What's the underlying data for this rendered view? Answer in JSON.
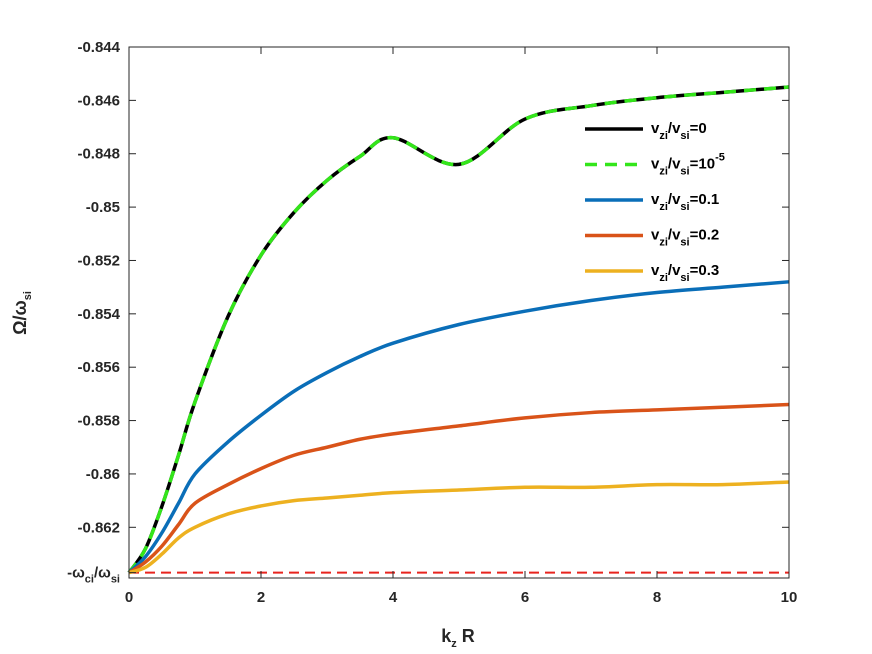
{
  "chart_data": {
    "type": "line",
    "x_axis": {
      "label_main": "k",
      "label_sub": "z",
      "label_tail": " R",
      "range": [
        0,
        10
      ],
      "ticks": [
        0,
        2,
        4,
        6,
        8,
        10
      ],
      "tick_labels": [
        "0",
        "2",
        "4",
        "6",
        "8",
        "10"
      ]
    },
    "y_axis": {
      "label_main": "Ω/ω",
      "label_sub": "si",
      "range": [
        -0.8639,
        -0.844
      ],
      "ticks": [
        -0.844,
        -0.846,
        -0.848,
        -0.85,
        -0.852,
        -0.854,
        -0.856,
        -0.858,
        -0.86,
        -0.862
      ],
      "tick_labels": [
        "-0.844",
        "-0.846",
        "-0.848",
        "-0.85",
        "-0.852",
        "-0.854",
        "-0.856",
        "-0.858",
        "-0.86",
        "-0.862"
      ],
      "special_tick": {
        "value": -0.8637,
        "parts": [
          "-ω",
          "ci",
          "/ω",
          "si"
        ]
      }
    },
    "reference_line": {
      "y": -0.8637,
      "color": "#e8251f",
      "style": "dashed"
    },
    "x": [
      0,
      0.25,
      0.5,
      0.75,
      1,
      1.5,
      2,
      2.5,
      3,
      3.5,
      4,
      5,
      6,
      7,
      8,
      9,
      10
    ],
    "series": [
      {
        "legend": [
          "v",
          "zi",
          "/v",
          "si",
          "=0",
          ""
        ],
        "color": "#000000",
        "style": "solid",
        "values": [
          -0.8637,
          -0.8628,
          -0.8612,
          -0.8593,
          -0.8573,
          -0.8541,
          -0.8518,
          -0.8502,
          -0.849,
          -0.8481,
          -0.8474,
          -0.8484,
          -0.8467,
          -0.8462,
          -0.8459,
          -0.8457,
          -0.8455
        ]
      },
      {
        "legend": [
          "v",
          "zi",
          "/v",
          "si",
          "=10",
          "-5"
        ],
        "color": "#33e61a",
        "style": "dashed",
        "values": [
          -0.8637,
          -0.8628,
          -0.8612,
          -0.8593,
          -0.8573,
          -0.8541,
          -0.8518,
          -0.8502,
          -0.849,
          -0.8481,
          -0.8474,
          -0.8484,
          -0.8467,
          -0.8462,
          -0.8459,
          -0.8457,
          -0.8455
        ]
      },
      {
        "legend": [
          "v",
          "zi",
          "/v",
          "si",
          "=0.1",
          ""
        ],
        "color": "#0a6eb8",
        "style": "solid",
        "values": [
          -0.8637,
          -0.8631,
          -0.8622,
          -0.8611,
          -0.86,
          -0.8588,
          -0.8578,
          -0.8569,
          -0.8562,
          -0.8556,
          -0.8551,
          -0.8544,
          -0.8539,
          -0.8535,
          -0.8532,
          -0.853,
          -0.8528
        ]
      },
      {
        "legend": [
          "v",
          "zi",
          "/v",
          "si",
          "=0.2",
          ""
        ],
        "color": "#d95319",
        "style": "solid",
        "values": [
          -0.8637,
          -0.8633,
          -0.8627,
          -0.8619,
          -0.8611,
          -0.8604,
          -0.8598,
          -0.8593,
          -0.859,
          -0.8587,
          -0.8585,
          -0.8582,
          -0.8579,
          -0.8577,
          -0.8576,
          -0.8575,
          -0.8574
        ]
      },
      {
        "legend": [
          "v",
          "zi",
          "/v",
          "si",
          "=0.3",
          ""
        ],
        "color": "#edb120",
        "style": "solid",
        "values": [
          -0.8637,
          -0.8635,
          -0.863,
          -0.8624,
          -0.862,
          -0.8615,
          -0.8612,
          -0.861,
          -0.8609,
          -0.8608,
          -0.8607,
          -0.8606,
          -0.8605,
          -0.8605,
          -0.8604,
          -0.8604,
          -0.8603
        ]
      }
    ],
    "legend_position": "top-right",
    "grid": false
  }
}
